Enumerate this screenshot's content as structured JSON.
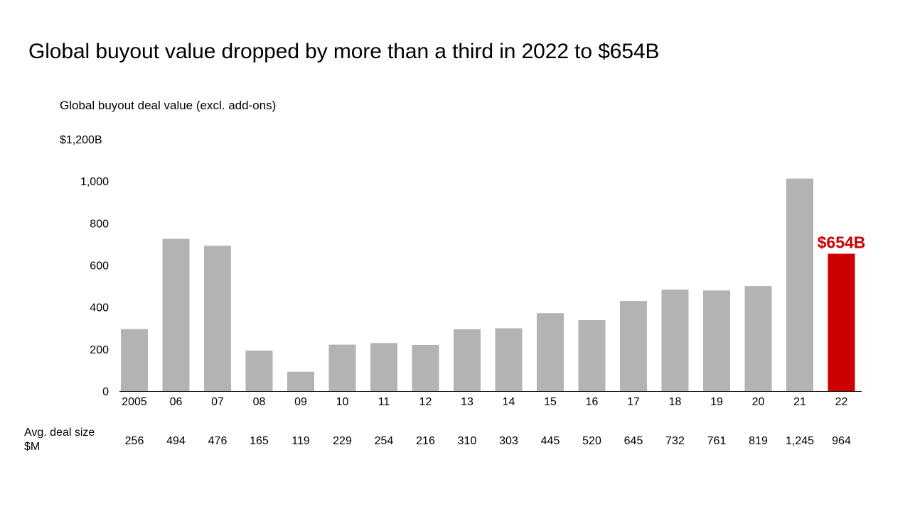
{
  "page": {
    "title": "Global buyout value dropped by more than a third in 2022 to $654B"
  },
  "chart_data": {
    "type": "bar",
    "subtitle": "Global buyout deal value (excl. add-ons)",
    "categories": [
      "2005",
      "06",
      "07",
      "08",
      "09",
      "10",
      "11",
      "12",
      "13",
      "14",
      "15",
      "16",
      "17",
      "18",
      "19",
      "20",
      "21",
      "22"
    ],
    "values": [
      295,
      725,
      692,
      193,
      92,
      221,
      229,
      220,
      294,
      299,
      371,
      338,
      429,
      483,
      479,
      500,
      1012,
      654
    ],
    "ylim": [
      0,
      1200
    ],
    "y_ticks": [
      {
        "value": 0,
        "label": "0"
      },
      {
        "value": 200,
        "label": "200"
      },
      {
        "value": 400,
        "label": "400"
      },
      {
        "value": 600,
        "label": "600"
      },
      {
        "value": 800,
        "label": "800"
      },
      {
        "value": 1000,
        "label": "1,000"
      },
      {
        "value": 1200,
        "label": "$1,200B"
      }
    ],
    "grid": false,
    "bar_color": "#b3b3b3",
    "highlight_color": "#cc0000",
    "highlight_index": 17,
    "highlight_label": "$654B",
    "avg_deal_size": {
      "label_line1": "Avg. deal size",
      "label_line2": "$M",
      "values": [
        "256",
        "494",
        "476",
        "165",
        "119",
        "229",
        "254",
        "216",
        "310",
        "303",
        "445",
        "520",
        "645",
        "732",
        "761",
        "819",
        "1,245",
        "964"
      ]
    }
  }
}
